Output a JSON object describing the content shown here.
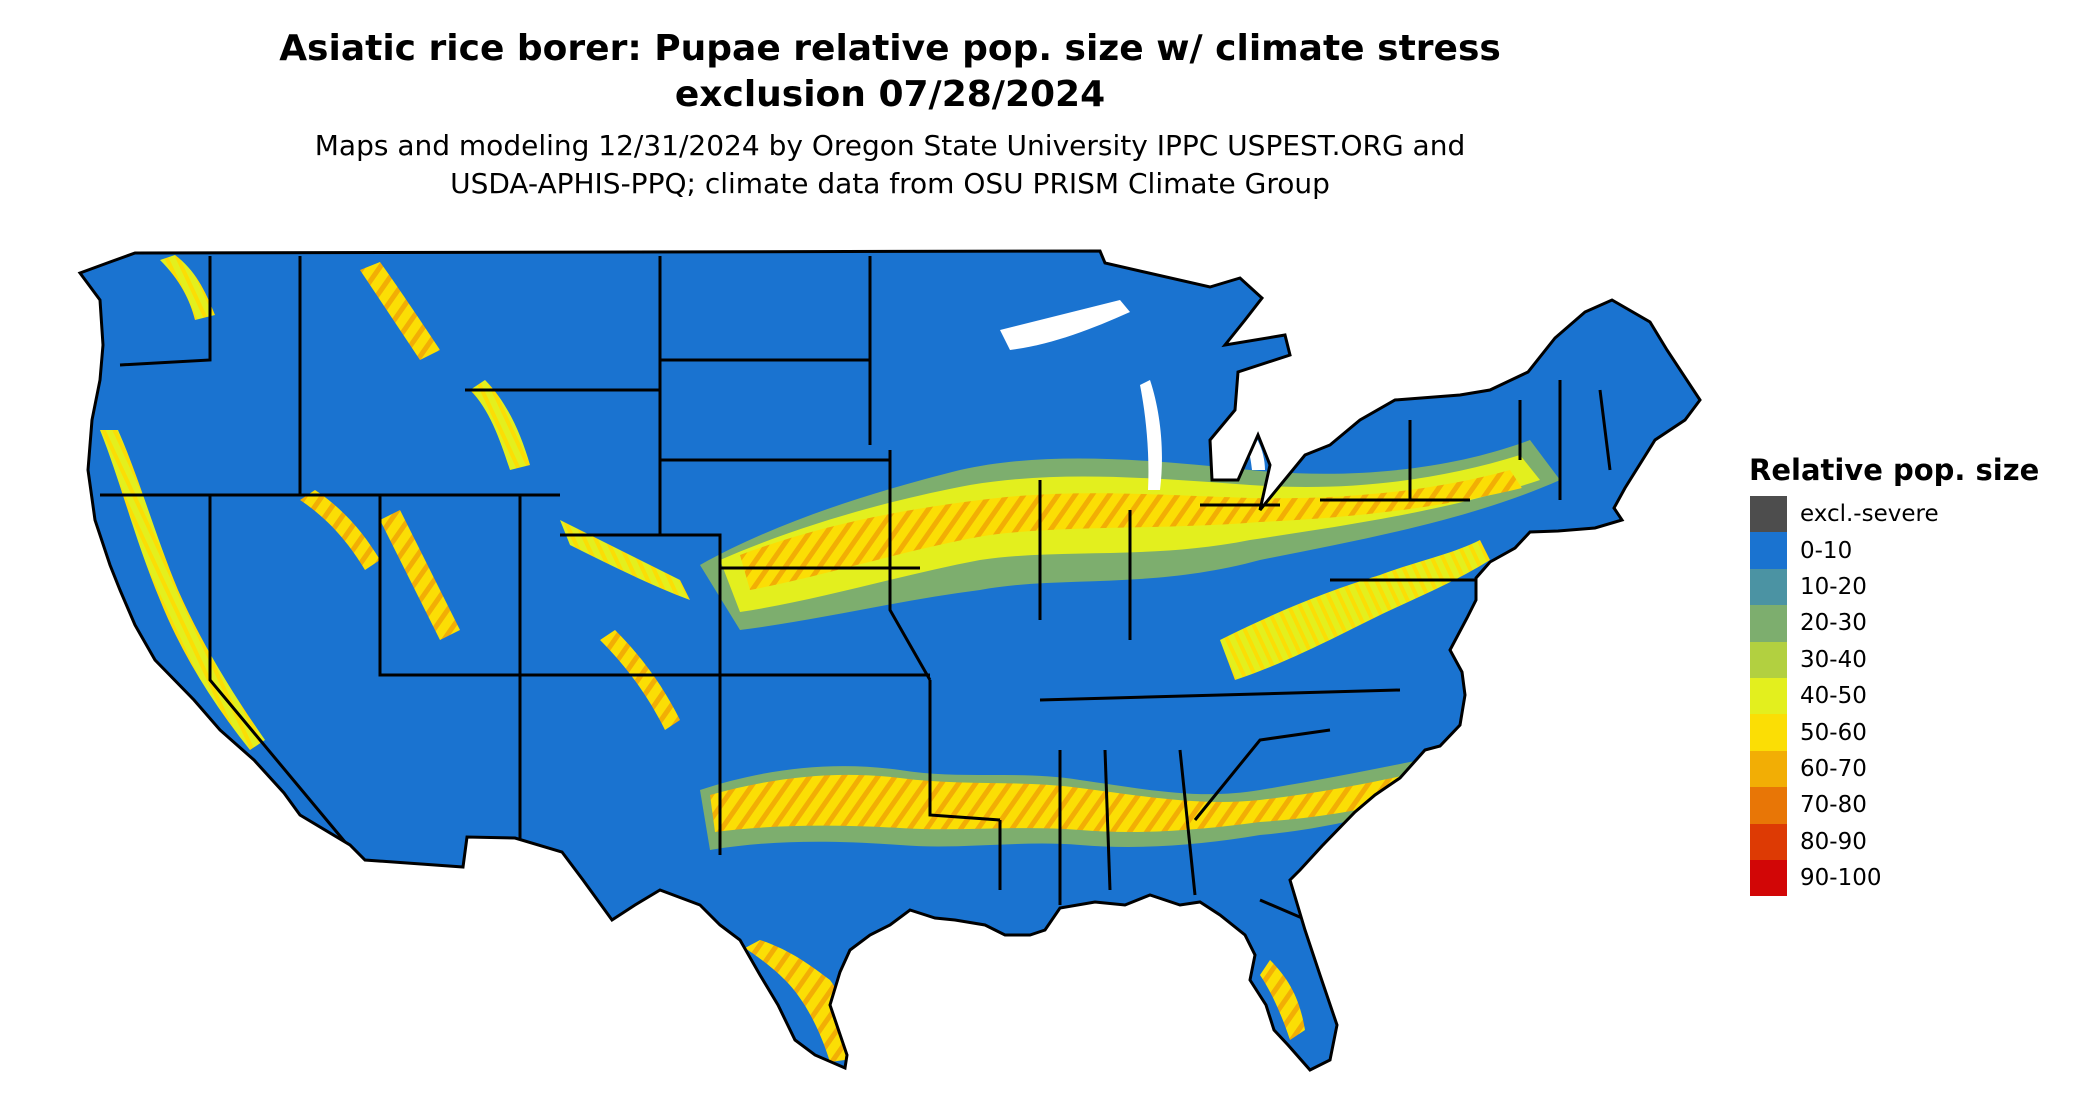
{
  "title_line1": "Asiatic rice borer: Pupae relative pop. size w/ climate stress",
  "title_line2": "exclusion 07/28/2024",
  "subtitle_line1": "Maps and modeling 12/31/2024 by Oregon State University IPPC USPEST.ORG and",
  "subtitle_line2": "USDA-APHIS-PPQ; climate data from OSU PRISM Climate Group",
  "legend": {
    "title": "Relative pop. size",
    "items": [
      {
        "label": "excl.-severe",
        "color": "#4d4d4d"
      },
      {
        "label": "0-10",
        "color": "#1a73d0"
      },
      {
        "label": "10-20",
        "color": "#4b93a3"
      },
      {
        "label": "20-30",
        "color": "#7dae6e"
      },
      {
        "label": "30-40",
        "color": "#b2d040"
      },
      {
        "label": "40-50",
        "color": "#e3ef1e"
      },
      {
        "label": "50-60",
        "color": "#fbde05"
      },
      {
        "label": "60-70",
        "color": "#f2ae05"
      },
      {
        "label": "70-80",
        "color": "#e87606"
      },
      {
        "label": "80-90",
        "color": "#dd3a04"
      },
      {
        "label": "90-100",
        "color": "#d20606"
      }
    ]
  }
}
